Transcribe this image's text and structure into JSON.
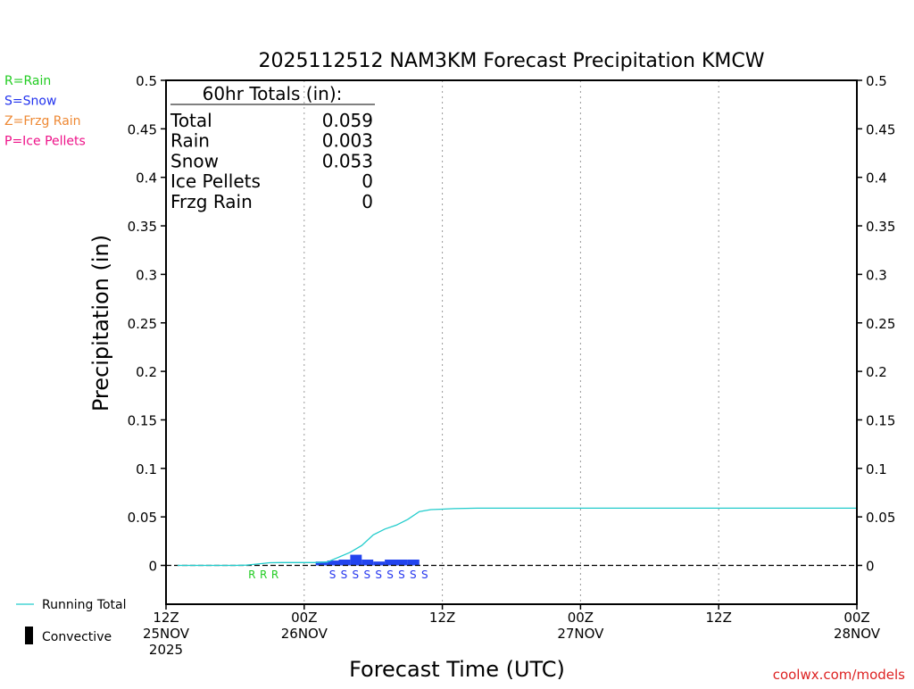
{
  "colors": {
    "rain": "#22cc22",
    "snow": "#2233ee",
    "frzg_rain": "#ee8833",
    "ice_pellets": "#ee1188",
    "running_total": "#22cccc",
    "bars": "#2244ee",
    "gridline": "#999999",
    "credit": "#dd2222"
  },
  "legend_types": [
    {
      "label": "R=Rain",
      "color": "#22cc22"
    },
    {
      "label": "S=Snow",
      "color": "#2233ee"
    },
    {
      "label": "Z=Frzg Rain",
      "color": "#ee8833"
    },
    {
      "label": "P=Ice Pellets",
      "color": "#ee1188"
    }
  ],
  "legend_lines": {
    "running_total": "Running Total",
    "convective": "Convective"
  },
  "totals": {
    "heading": "60hr Totals (in):",
    "rows": [
      {
        "label": "Total",
        "value": "0.059"
      },
      {
        "label": "Rain",
        "value": "0.003"
      },
      {
        "label": "Snow",
        "value": "0.053"
      },
      {
        "label": "Ice Pellets",
        "value": "0"
      },
      {
        "label": "Frzg Rain",
        "value": "0"
      }
    ]
  },
  "credit": "coolwx.com/models",
  "chart_data": {
    "type": "bar",
    "title": "2025112512 NAM3KM Forecast Precipitation KMCW",
    "xlabel": "Forecast Time (UTC)",
    "ylabel": "Precipitation (in)",
    "xlim": [
      0,
      60
    ],
    "ylim": [
      -0.04,
      0.5
    ],
    "yticks": [
      0,
      0.05,
      0.1,
      0.15,
      0.2,
      0.25,
      0.3,
      0.35,
      0.4,
      0.45,
      0.5
    ],
    "ytick_labels": [
      "0",
      "0.05",
      "0.1",
      "0.15",
      "0.2",
      "0.25",
      "0.3",
      "0.35",
      "0.4",
      "0.45",
      "0.5"
    ],
    "xticks": [
      {
        "x": 0,
        "lines": [
          "12Z",
          "25NOV",
          "2025"
        ]
      },
      {
        "x": 12,
        "lines": [
          "00Z",
          "26NOV"
        ]
      },
      {
        "x": 24,
        "lines": [
          "12Z"
        ]
      },
      {
        "x": 36,
        "lines": [
          "00Z",
          "27NOV"
        ]
      },
      {
        "x": 48,
        "lines": [
          "12Z"
        ]
      },
      {
        "x": 60,
        "lines": [
          "00Z",
          "28NOV"
        ]
      }
    ],
    "grid_x": [
      12,
      24,
      36,
      48
    ],
    "running_total": {
      "name": "Running Total",
      "x": [
        1,
        2,
        3,
        4,
        5,
        6,
        7,
        8,
        9,
        10,
        11,
        12,
        13,
        14,
        15,
        16,
        17,
        18,
        19,
        20,
        21,
        22,
        23,
        24,
        25,
        26,
        27,
        28,
        29,
        30,
        31,
        32,
        33,
        34,
        35,
        36,
        37,
        38,
        39,
        40,
        41,
        42,
        43,
        44,
        45,
        46,
        47,
        48,
        49,
        50,
        51,
        52,
        53,
        54,
        55,
        56,
        57,
        58,
        59,
        60
      ],
      "y": [
        0,
        0,
        0,
        0,
        0,
        0,
        0.0003,
        0.0015,
        0.0028,
        0.003,
        0.003,
        0.003,
        0.003,
        0.0035,
        0.0085,
        0.0135,
        0.0205,
        0.0315,
        0.0375,
        0.0415,
        0.0475,
        0.0555,
        0.0575,
        0.058,
        0.0585,
        0.0588,
        0.059,
        0.059,
        0.059,
        0.059,
        0.059,
        0.059,
        0.059,
        0.059,
        0.059,
        0.059,
        0.059,
        0.059,
        0.059,
        0.059,
        0.059,
        0.059,
        0.059,
        0.059,
        0.059,
        0.059,
        0.059,
        0.059,
        0.059,
        0.059,
        0.059,
        0.059,
        0.059,
        0.059,
        0.059,
        0.059,
        0.059,
        0.059,
        0.059,
        0.059
      ]
    },
    "hourly_bars": {
      "x": [
        14,
        15,
        16,
        17,
        18,
        19,
        20,
        21,
        22
      ],
      "values": [
        0.004,
        0.005,
        0.006,
        0.011,
        0.006,
        0.004,
        0.006,
        0.006,
        0.006
      ]
    },
    "ptype_markers": [
      {
        "x": 8,
        "label": "R",
        "type": "rain"
      },
      {
        "x": 9,
        "label": "R",
        "type": "rain"
      },
      {
        "x": 10,
        "label": "R",
        "type": "rain"
      },
      {
        "x": 15,
        "label": "S",
        "type": "snow"
      },
      {
        "x": 16,
        "label": "S",
        "type": "snow"
      },
      {
        "x": 17,
        "label": "S",
        "type": "snow"
      },
      {
        "x": 18,
        "label": "S",
        "type": "snow"
      },
      {
        "x": 19,
        "label": "S",
        "type": "snow"
      },
      {
        "x": 20,
        "label": "S",
        "type": "snow"
      },
      {
        "x": 21,
        "label": "S",
        "type": "snow"
      },
      {
        "x": 22,
        "label": "S",
        "type": "snow"
      },
      {
        "x": 23,
        "label": "S",
        "type": "snow"
      }
    ]
  }
}
